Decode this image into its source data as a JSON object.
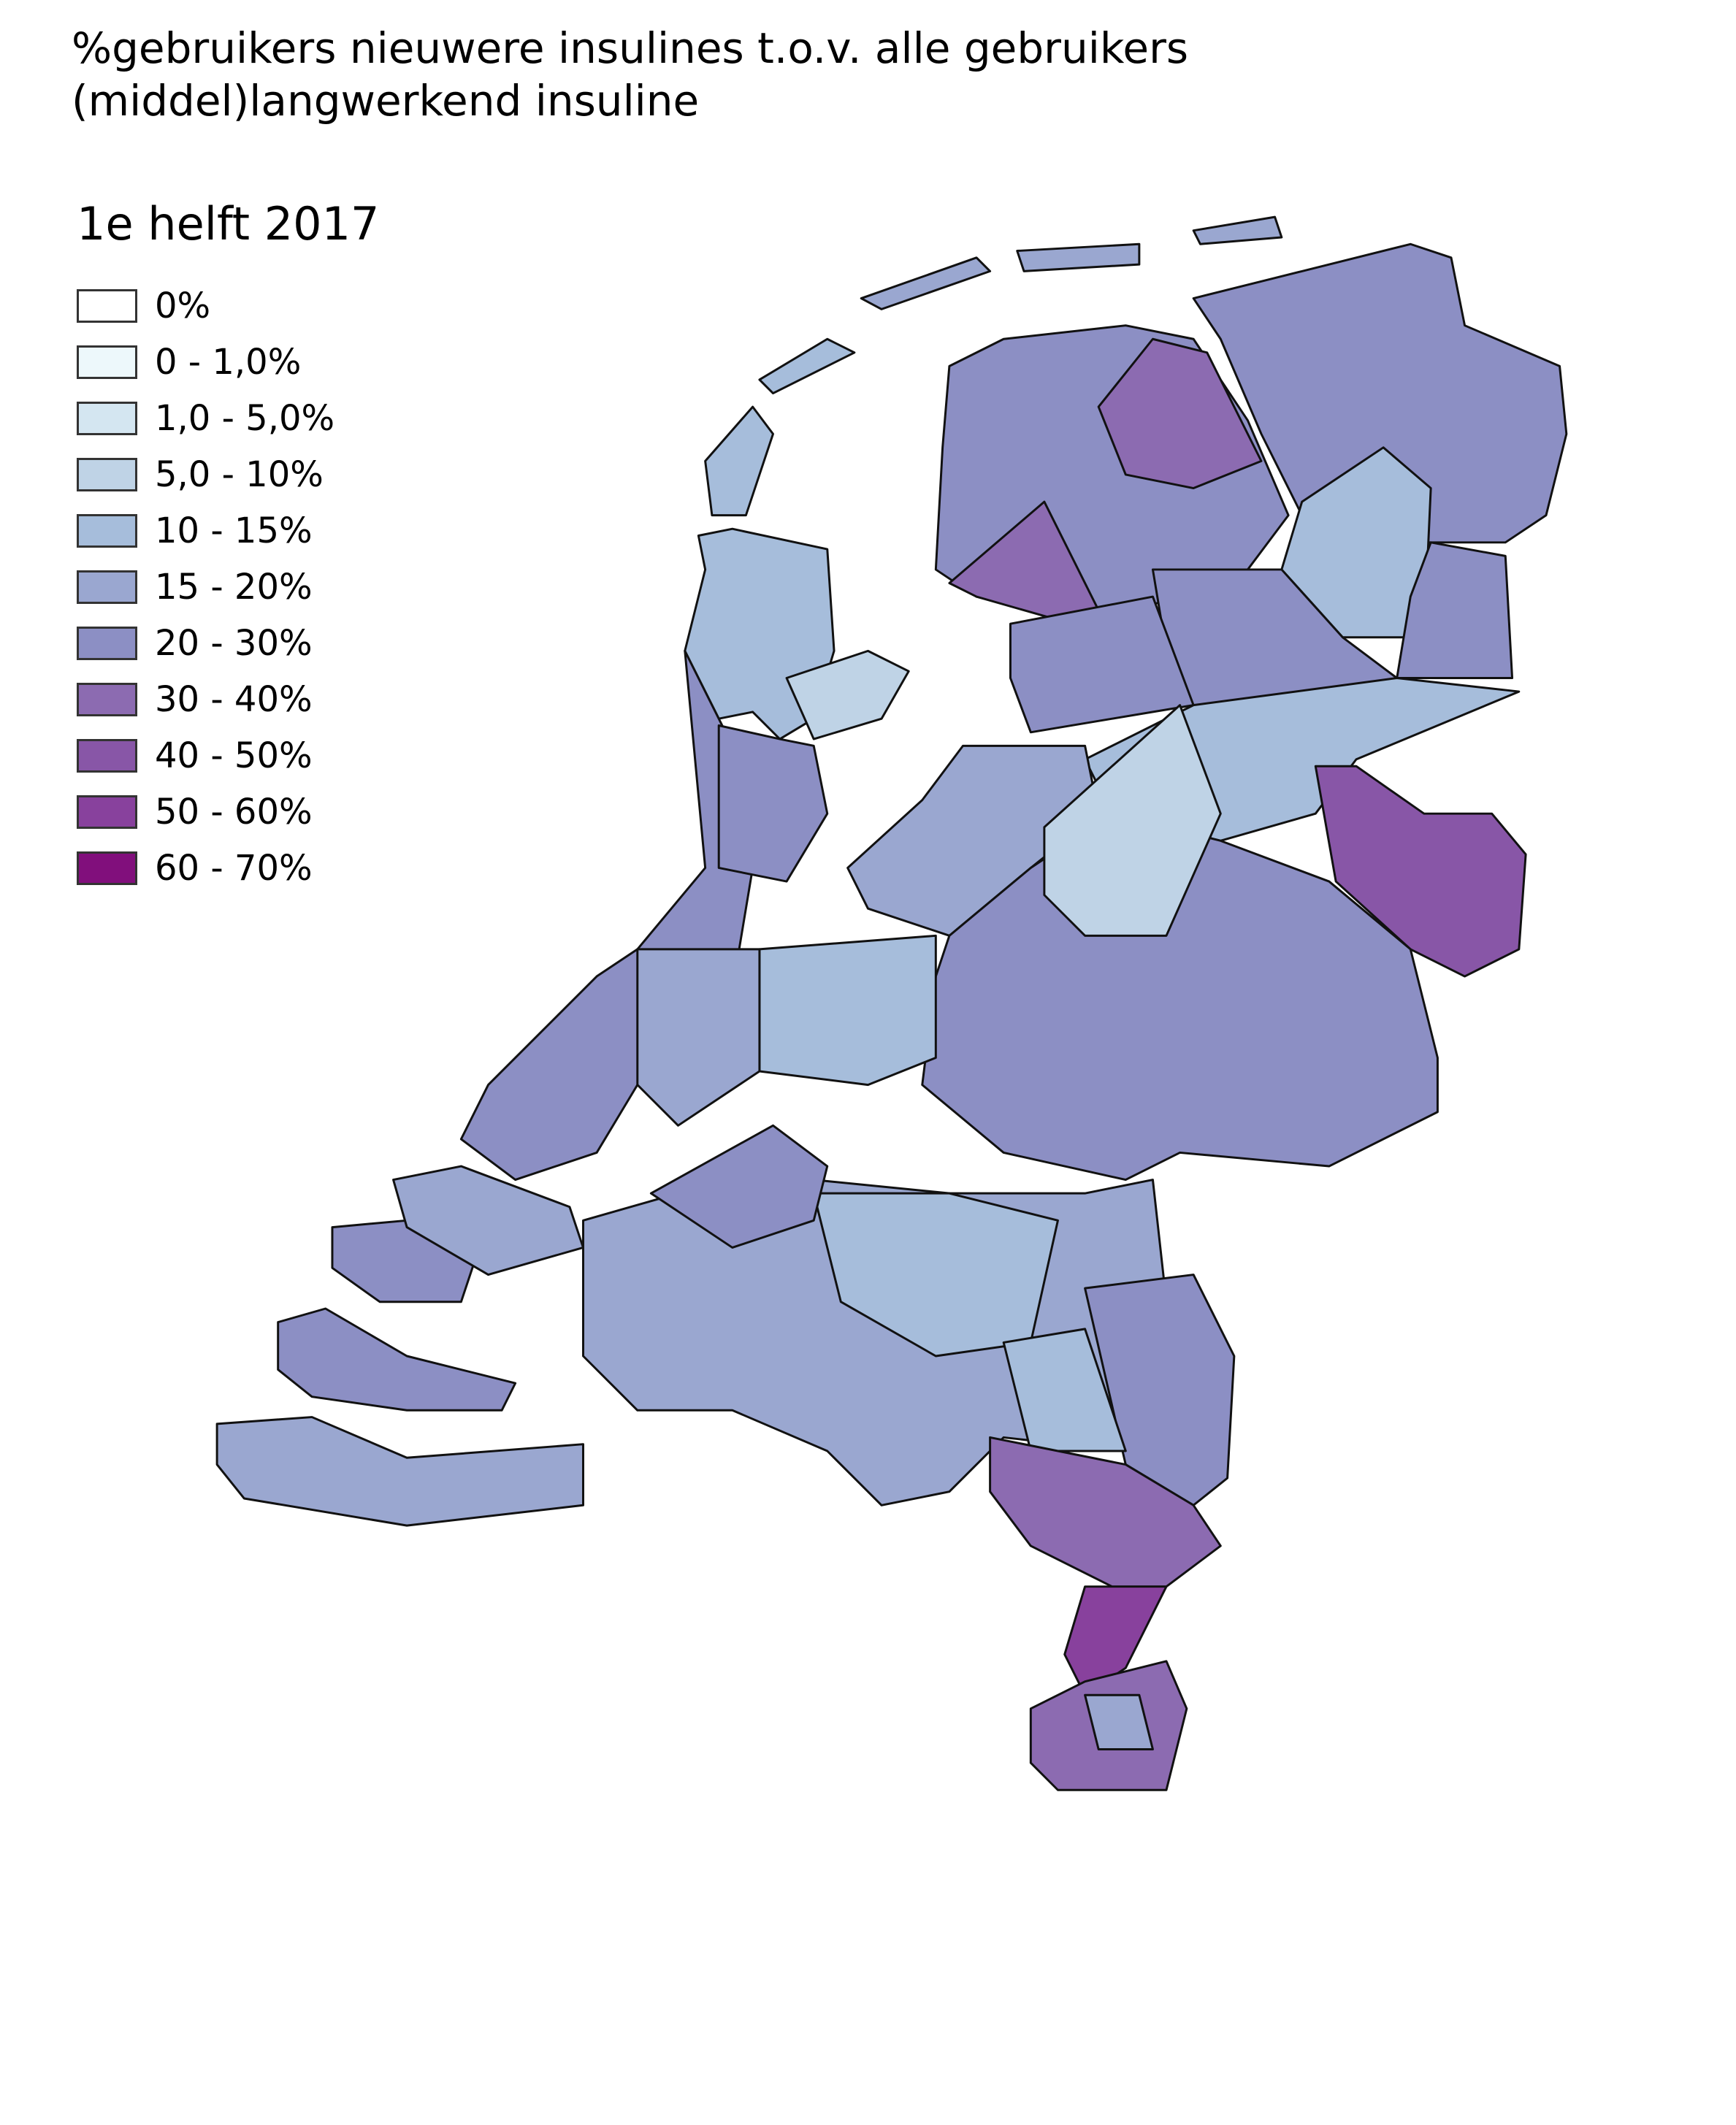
{
  "title": "%gebruikers nieuwere insulines t.o.v. alle gebruikers (middel)langwerkend insuline",
  "legend": {
    "title": "1e helft 2017",
    "items": [
      {
        "label": "0%",
        "color": "#ffffff"
      },
      {
        "label": "0 - 1,0%",
        "color": "#edf8fb"
      },
      {
        "label": "1,0 - 5,0%",
        "color": "#d4e6f1"
      },
      {
        "label": "5,0 - 10%",
        "color": "#bfd3e6"
      },
      {
        "label": "10 - 15%",
        "color": "#a6bddb"
      },
      {
        "label": "15 - 20%",
        "color": "#9aa7d0"
      },
      {
        "label": "20 - 30%",
        "color": "#8c8fc4"
      },
      {
        "label": "30 - 40%",
        "color": "#8c6bb1"
      },
      {
        "label": "40 - 50%",
        "color": "#8856a7"
      },
      {
        "label": "50 - 60%",
        "color": "#88419d"
      },
      {
        "label": "60 - 70%",
        "color": "#810f7c"
      }
    ]
  }
}
